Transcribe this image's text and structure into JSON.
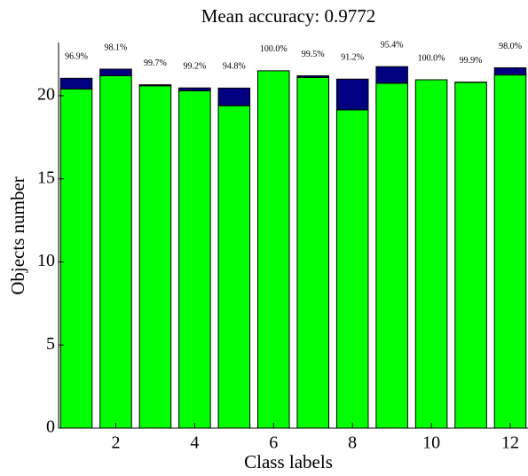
{
  "chart_data": {
    "type": "bar",
    "stacked": true,
    "title": "Mean accuracy: 0.9772",
    "xlabel": "Class labels",
    "ylabel": "Objects number",
    "x": [
      1,
      2,
      3,
      4,
      5,
      6,
      7,
      8,
      9,
      10,
      11,
      12
    ],
    "series": [
      {
        "color": "#00ff00",
        "values": [
          20.4,
          21.2,
          20.6,
          20.3,
          19.4,
          21.5,
          21.1,
          19.15,
          20.75,
          20.96,
          20.8,
          21.25
        ]
      },
      {
        "color": "#000080",
        "values": [
          0.65,
          0.4,
          0.06,
          0.17,
          1.06,
          0,
          0.1,
          1.85,
          1.0,
          0,
          0.02,
          0.43
        ]
      }
    ],
    "annotations": {
      "values": [
        96.9,
        98.1,
        99.7,
        99.2,
        94.8,
        100.0,
        99.5,
        91.2,
        95.4,
        100.0,
        99.9,
        98.0
      ],
      "value_labels": [
        "96.9%",
        "98.1%",
        "99.7%",
        "99.2%",
        "94.8%",
        "100.0%",
        "99.5%",
        "91.2%",
        "95.4%",
        "100.0%",
        "99.9%",
        "98.0%"
      ]
    },
    "xlim": [
      0.55,
      12.45
    ],
    "xticks": [
      2,
      4,
      6,
      8,
      10,
      12
    ],
    "ylim": [
      0,
      23.2
    ],
    "yticks": [
      0,
      5,
      10,
      15,
      20
    ]
  }
}
